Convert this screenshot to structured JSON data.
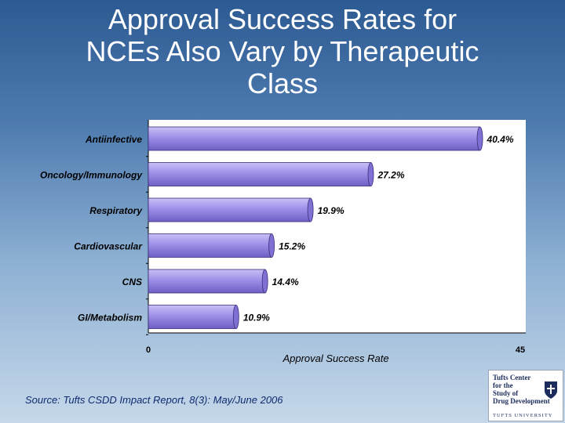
{
  "title": {
    "lines": [
      "Approval Success Rates for",
      "NCEs Also Vary by Therapeutic",
      "Class"
    ]
  },
  "chart_data": {
    "type": "bar",
    "orientation": "horizontal",
    "title": "Approval Success Rates for NCEs Also Vary by Therapeutic Class",
    "categories": [
      "Antiinfective",
      "Oncology/Immunology",
      "Respiratory",
      "Cardiovascular",
      "CNS",
      "GI/Metabolism"
    ],
    "values": [
      40.4,
      27.2,
      19.9,
      15.2,
      14.4,
      10.9
    ],
    "value_labels": [
      "40.4%",
      "27.2%",
      "19.9%",
      "15.2%",
      "14.4%",
      "10.9%"
    ],
    "xlabel": "Approval Success Rate",
    "ylabel": "",
    "xlim": [
      0,
      45
    ],
    "xticks": [
      "0",
      "45"
    ],
    "grid": false,
    "colors": {
      "bar": "#9e8fe8",
      "bar_dark": "#6d5fc4",
      "plot_bg": "#ffffff",
      "axis": "#000000"
    }
  },
  "source": "Source: Tufts CSDD Impact Report, 8(3): May/June 2006",
  "logo": {
    "lines": [
      "Tufts Center",
      "for the",
      "Study of",
      "Drug Development"
    ],
    "university": "TUFTS UNIVERSITY"
  }
}
